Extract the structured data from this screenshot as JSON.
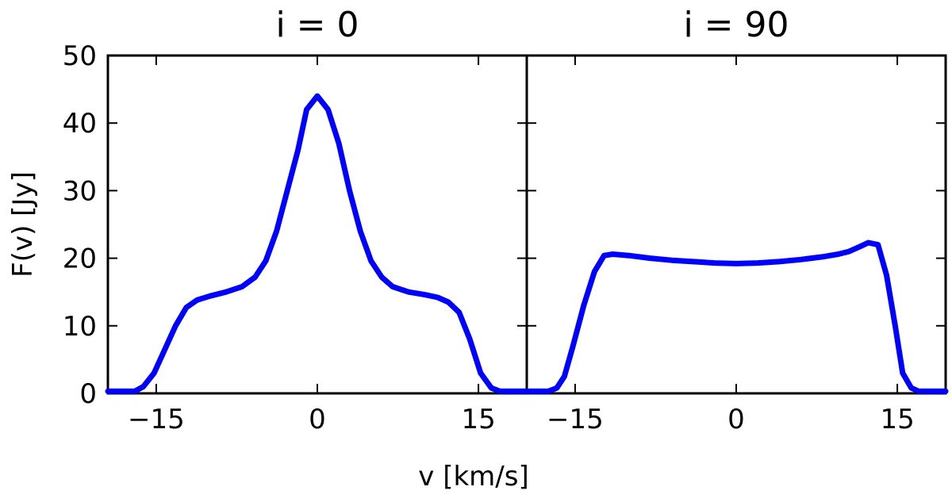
{
  "chart_data": {
    "type": "line",
    "xlabel": "v [km/s]",
    "ylabel": "F(v) [Jy]",
    "xlim": [
      -19.5,
      19.5
    ],
    "ylim": [
      0,
      50
    ],
    "x_ticks": [
      -15,
      0,
      15
    ],
    "x_tick_labels": [
      "−15",
      "0",
      "15"
    ],
    "y_ticks": [
      0,
      10,
      20,
      30,
      40,
      50
    ],
    "y_tick_labels": [
      "0",
      "10",
      "20",
      "30",
      "40",
      "50"
    ],
    "line_color": "#0000ff",
    "panels": [
      {
        "title": "i = 0",
        "x": [
          -19.5,
          -17,
          -16.2,
          -15.2,
          -14.2,
          -13.2,
          -12.2,
          -11.2,
          -10,
          -8.5,
          -7,
          -5.8,
          -4.8,
          -3.8,
          -2.8,
          -1.8,
          -1,
          0,
          1,
          2,
          3,
          4,
          5,
          6,
          7,
          8.5,
          10,
          11.2,
          12.2,
          13.2,
          14.2,
          15.2,
          16.2,
          17,
          19.5
        ],
        "y": [
          0.3,
          0.3,
          1,
          3,
          6.5,
          10,
          12.7,
          13.8,
          14.4,
          15,
          15.8,
          17.2,
          19.6,
          24,
          30,
          36,
          42,
          44,
          42,
          37,
          30,
          24,
          19.6,
          17.2,
          15.8,
          15,
          14.6,
          14.2,
          13.5,
          12,
          8,
          3,
          0.8,
          0.3,
          0.3
        ]
      },
      {
        "title": "i = 90",
        "x": [
          -19.5,
          -17.5,
          -16.7,
          -16,
          -15.2,
          -14.2,
          -13.2,
          -12.3,
          -11.5,
          -10,
          -8,
          -6,
          -4,
          -2,
          0,
          2,
          4,
          6,
          8,
          9.5,
          10.5,
          11.5,
          12.3,
          13.2,
          14,
          14.8,
          15.5,
          16.3,
          17,
          19.5
        ],
        "y": [
          0.3,
          0.3,
          0.8,
          2.5,
          7,
          13,
          18,
          20.4,
          20.6,
          20.4,
          20,
          19.7,
          19.5,
          19.3,
          19.2,
          19.3,
          19.5,
          19.8,
          20.2,
          20.6,
          21,
          21.7,
          22.3,
          22,
          17.5,
          10,
          3,
          0.8,
          0.3,
          0.3
        ]
      }
    ]
  }
}
